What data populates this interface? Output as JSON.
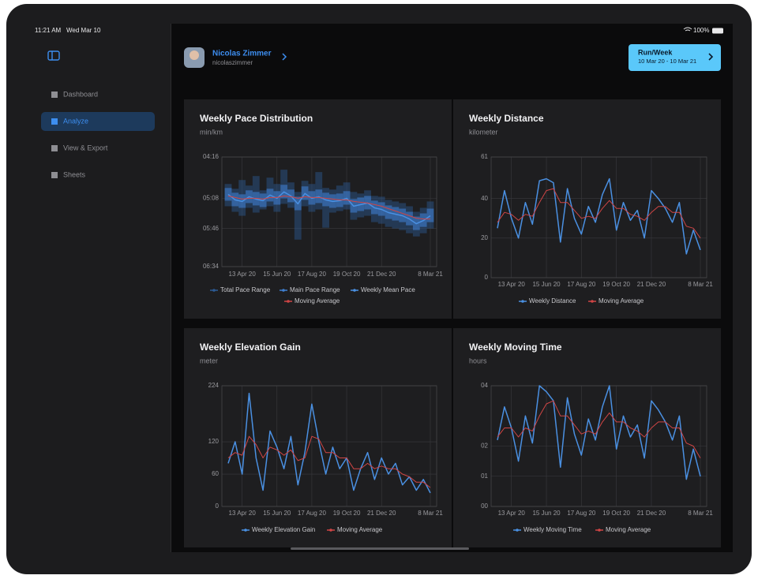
{
  "status_bar": {
    "time": "11:21 AM",
    "date": "Wed Mar 10",
    "battery": "100%"
  },
  "sidebar": {
    "items": [
      "Dashboard",
      "Analyze",
      "View & Export",
      "Sheets"
    ]
  },
  "header": {
    "name": "Nicolas Zimmer",
    "username": "nicolaszimmer",
    "button_title": "Run/Week",
    "button_subtitle": "10 Mar 20 - 10 Mar 21"
  },
  "chart_data": [
    {
      "type": "line",
      "title": "Weekly Pace Distribution",
      "subtitle": "min/km",
      "inverted": true,
      "grid": true,
      "categories": [
        null,
        null,
        "13 Apr 20",
        null,
        null,
        null,
        null,
        "15 Jun 20",
        null,
        null,
        null,
        null,
        "17 Aug 20",
        null,
        null,
        null,
        null,
        "19 Oct 20",
        null,
        null,
        null,
        null,
        "21 Dec 20",
        null,
        null,
        null,
        null,
        null,
        null,
        "8 Mar 21"
      ],
      "ylim": [
        256,
        394
      ],
      "yticks": [
        {
          "value": 256,
          "label": "04:16"
        },
        {
          "value": 308,
          "label": "05:08"
        },
        {
          "value": 346,
          "label": "05:46"
        },
        {
          "value": 394,
          "label": "06:34"
        }
      ],
      "series": [
        {
          "name": "Total Pace Range",
          "color": "#2c5a94",
          "low": [
            290,
            296,
            285,
            292,
            280,
            298,
            282,
            290,
            272,
            288,
            300,
            286,
            290,
            275,
            295,
            297,
            292,
            288,
            300,
            302,
            298,
            305,
            306,
            310,
            312,
            314,
            318,
            325,
            320,
            312
          ],
          "high": [
            318,
            325,
            330,
            320,
            326,
            322,
            318,
            325,
            315,
            320,
            360,
            318,
            325,
            322,
            345,
            326,
            324,
            322,
            335,
            332,
            330,
            338,
            340,
            344,
            346,
            348,
            352,
            356,
            352,
            346
          ]
        },
        {
          "name": "Main Pace Range",
          "color": "#3f7fd0",
          "low": [
            295,
            301,
            303,
            298,
            300,
            302,
            296,
            299,
            291,
            297,
            306,
            293,
            299,
            297,
            301,
            303,
            302,
            299,
            309,
            307,
            305,
            311,
            313,
            317,
            319,
            321,
            325,
            331,
            327,
            321
          ],
          "high": [
            311,
            318,
            320,
            314,
            317,
            319,
            312,
            316,
            308,
            313,
            323,
            310,
            316,
            314,
            318,
            320,
            319,
            316,
            326,
            324,
            322,
            328,
            330,
            334,
            336,
            338,
            342,
            348,
            344,
            338
          ]
        },
        {
          "name": "Weekly Mean Pace",
          "color": "#4a90e2",
          "values": [
            303,
            310,
            312,
            306,
            309,
            311,
            304,
            308,
            300,
            305,
            315,
            302,
            308,
            306,
            310,
            312,
            311,
            308,
            318,
            316,
            314,
            320,
            322,
            326,
            328,
            330,
            334,
            340,
            336,
            330
          ]
        },
        {
          "name": "Moving Average",
          "color": "#d04545",
          "values": [
            305,
            307,
            309,
            308,
            308,
            309,
            307,
            307,
            305,
            306,
            308,
            306,
            307,
            307,
            308,
            309,
            310,
            310,
            312,
            313,
            314,
            316,
            318,
            321,
            324,
            327,
            330,
            333,
            334,
            334
          ]
        }
      ]
    },
    {
      "type": "line",
      "title": "Weekly Distance",
      "subtitle": "kilometer",
      "grid": true,
      "categories": [
        null,
        null,
        "13 Apr 20",
        null,
        null,
        null,
        null,
        "15 Jun 20",
        null,
        null,
        null,
        null,
        "17 Aug 20",
        null,
        null,
        null,
        null,
        "19 Oct 20",
        null,
        null,
        null,
        null,
        "21 Dec 20",
        null,
        null,
        null,
        null,
        null,
        null,
        "8 Mar 21"
      ],
      "ylim": [
        0,
        61
      ],
      "yticks": [
        0,
        20,
        40,
        61
      ],
      "series": [
        {
          "name": "Weekly Distance",
          "color": "#4a90e2",
          "values": [
            25,
            44,
            30,
            20,
            38,
            27,
            49,
            50,
            48,
            18,
            45,
            30,
            22,
            36,
            28,
            42,
            50,
            24,
            38,
            29,
            34,
            20,
            44,
            40,
            35,
            28,
            38,
            12,
            24,
            14
          ]
        },
        {
          "name": "Moving Average",
          "color": "#d04545",
          "values": [
            28,
            33,
            32,
            29,
            32,
            31,
            38,
            44,
            45,
            38,
            38,
            34,
            30,
            31,
            30,
            35,
            39,
            35,
            35,
            32,
            31,
            29,
            33,
            36,
            36,
            33,
            33,
            26,
            25,
            20
          ]
        }
      ]
    },
    {
      "type": "line",
      "title": "Weekly Elevation Gain",
      "subtitle": "meter",
      "grid": true,
      "categories": [
        null,
        null,
        "13 Apr 20",
        null,
        null,
        null,
        null,
        "15 Jun 20",
        null,
        null,
        null,
        null,
        "17 Aug 20",
        null,
        null,
        null,
        null,
        "19 Oct 20",
        null,
        null,
        null,
        null,
        "21 Dec 20",
        null,
        null,
        null,
        null,
        null,
        null,
        "8 Mar 21"
      ],
      "ylim": [
        0,
        224
      ],
      "yticks": [
        0,
        60,
        120,
        224
      ],
      "series": [
        {
          "name": "Weekly Elevation Gain",
          "color": "#4a90e2",
          "values": [
            80,
            120,
            60,
            210,
            90,
            30,
            140,
            110,
            70,
            130,
            40,
            100,
            190,
            120,
            60,
            110,
            70,
            90,
            30,
            70,
            100,
            50,
            90,
            60,
            80,
            40,
            55,
            30,
            50,
            25
          ]
        },
        {
          "name": "Moving Average",
          "color": "#d04545",
          "values": [
            90,
            100,
            95,
            130,
            115,
            90,
            110,
            105,
            95,
            105,
            85,
            90,
            130,
            125,
            100,
            100,
            90,
            90,
            70,
            70,
            80,
            70,
            75,
            70,
            70,
            60,
            55,
            45,
            45,
            35
          ]
        }
      ]
    },
    {
      "type": "line",
      "title": "Weekly Moving Time",
      "subtitle": "hours",
      "grid": true,
      "categories": [
        null,
        null,
        "13 Apr 20",
        null,
        null,
        null,
        null,
        "15 Jun 20",
        null,
        null,
        null,
        null,
        "17 Aug 20",
        null,
        null,
        null,
        null,
        "19 Oct 20",
        null,
        null,
        null,
        null,
        "21 Dec 20",
        null,
        null,
        null,
        null,
        null,
        null,
        "8 Mar 21"
      ],
      "ylim": [
        0,
        4
      ],
      "yticks": [
        {
          "value": 0,
          "label": "00"
        },
        {
          "value": 1,
          "label": "01"
        },
        {
          "value": 2,
          "label": "02"
        },
        {
          "value": 4,
          "label": "04"
        }
      ],
      "series": [
        {
          "name": "Weekly Moving Time",
          "color": "#4a90e2",
          "values": [
            2.2,
            3.3,
            2.6,
            1.5,
            3.0,
            2.1,
            4.0,
            3.8,
            3.5,
            1.3,
            3.6,
            2.4,
            1.7,
            2.9,
            2.2,
            3.3,
            4.0,
            1.9,
            3.0,
            2.3,
            2.7,
            1.6,
            3.5,
            3.2,
            2.8,
            2.2,
            3.0,
            0.9,
            1.9,
            1.0
          ]
        },
        {
          "name": "Moving Average",
          "color": "#d04545",
          "values": [
            2.3,
            2.6,
            2.6,
            2.3,
            2.6,
            2.5,
            3.0,
            3.4,
            3.5,
            3.0,
            3.0,
            2.7,
            2.4,
            2.5,
            2.4,
            2.8,
            3.1,
            2.8,
            2.8,
            2.6,
            2.5,
            2.3,
            2.6,
            2.8,
            2.8,
            2.6,
            2.6,
            2.1,
            2.0,
            1.6
          ]
        }
      ]
    }
  ]
}
